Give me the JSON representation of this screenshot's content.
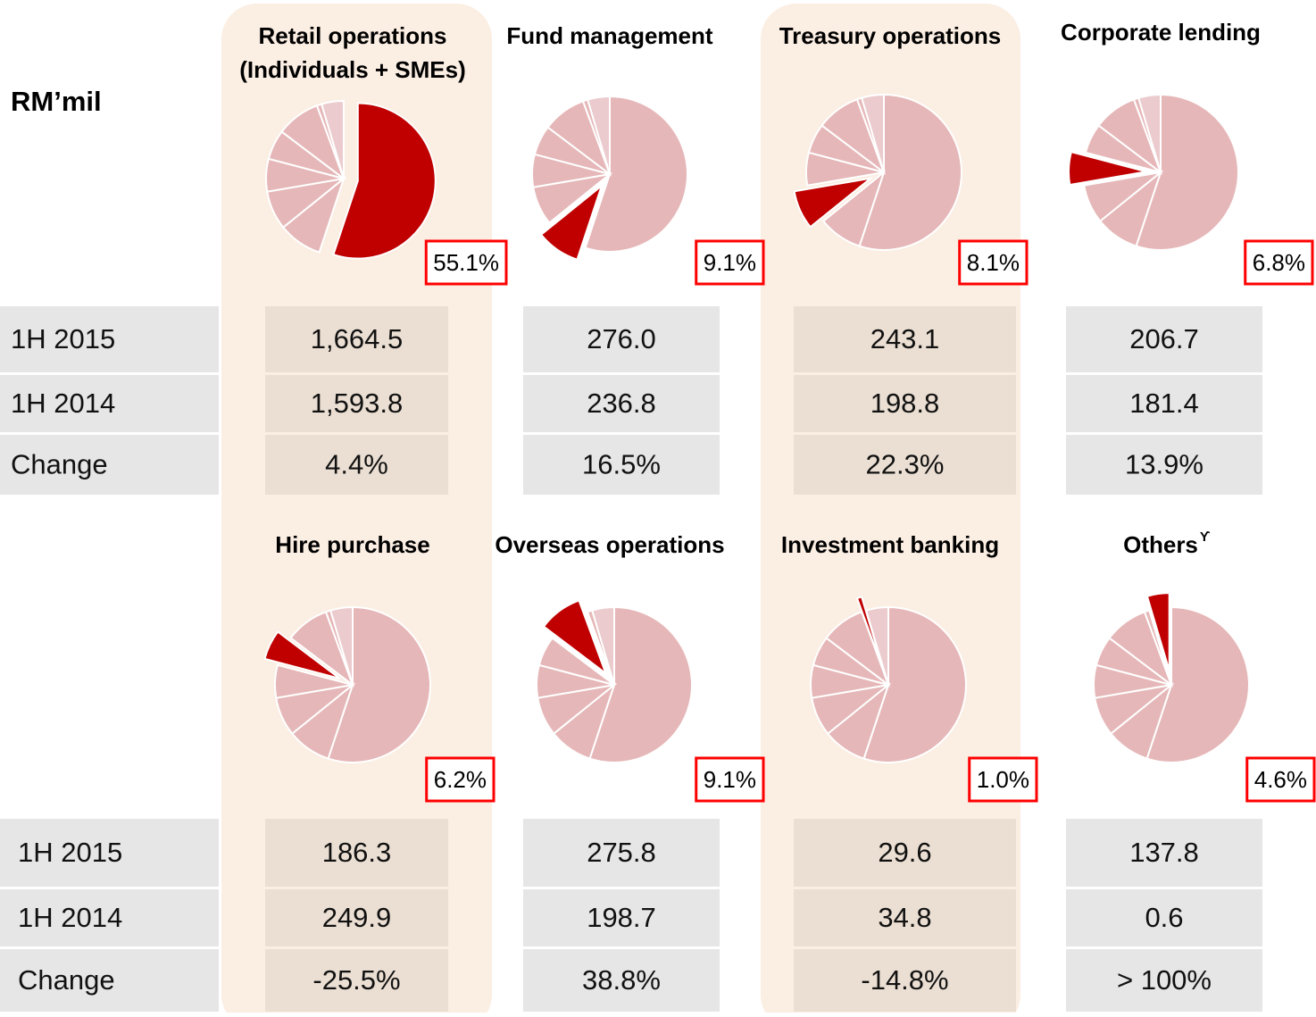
{
  "unit": "RM’mil",
  "row_labels": [
    "1H 2015",
    "1H 2014",
    "Change"
  ],
  "segments": [
    {
      "title": [
        "Retail operations",
        "(Individuals + SMEs)"
      ],
      "share": 55.1,
      "share_label": "55.1%",
      "rows": [
        "1,664.5",
        "1,593.8",
        "4.4%"
      ]
    },
    {
      "title": [
        "Fund management"
      ],
      "share": 9.1,
      "share_label": "9.1%",
      "rows": [
        "276.0",
        "236.8",
        "16.5%"
      ]
    },
    {
      "title": [
        "Treasury operations"
      ],
      "share": 8.1,
      "share_label": "8.1%",
      "rows": [
        "243.1",
        "198.8",
        "22.3%"
      ]
    },
    {
      "title": [
        "Corporate lending"
      ],
      "share": 6.8,
      "share_label": "6.8%",
      "rows": [
        "206.7",
        "181.4",
        "13.9%"
      ]
    },
    {
      "title": [
        "Hire purchase"
      ],
      "share": 6.2,
      "share_label": "6.2%",
      "rows": [
        "186.3",
        "249.9",
        "-25.5%"
      ]
    },
    {
      "title": [
        "Overseas operations"
      ],
      "share": 9.1,
      "share_label": "9.1%",
      "rows": [
        "275.8",
        "198.7",
        "38.8%"
      ]
    },
    {
      "title": [
        "Investment banking"
      ],
      "share": 1.0,
      "share_label": "1.0%",
      "rows": [
        "29.6",
        "34.8",
        "-14.8%"
      ]
    },
    {
      "title": [
        "Others"
      ],
      "title_note": "ϒ",
      "share": 4.6,
      "share_label": "4.6%",
      "rows": [
        "137.8",
        "0.6",
        "> 100%"
      ]
    }
  ]
}
